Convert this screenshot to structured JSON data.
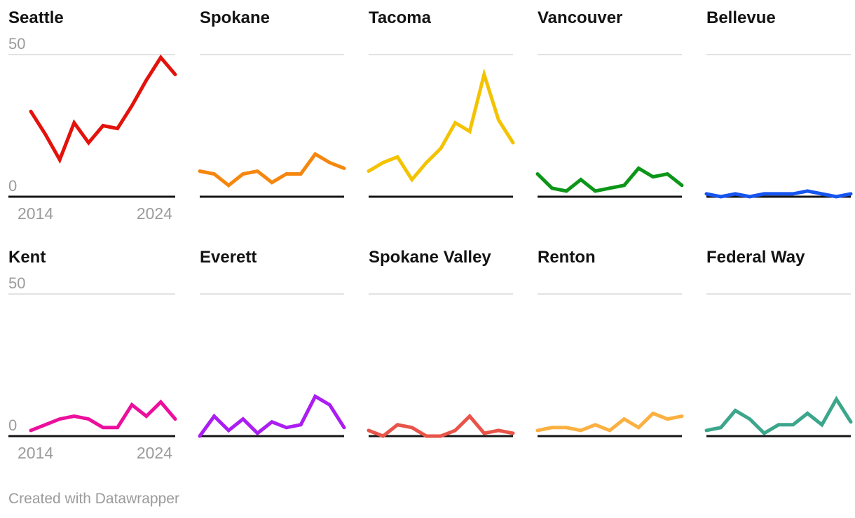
{
  "footer": {
    "text": "Created with Datawrapper"
  },
  "axis": {
    "y_top_label": "50",
    "y_bottom_label": "0",
    "x_start_label": "2014",
    "x_end_label": "2024"
  },
  "chart_data": {
    "type": "line",
    "layout": "small-multiples-5x2",
    "x": [
      2014,
      2015,
      2016,
      2017,
      2018,
      2019,
      2020,
      2021,
      2022,
      2023,
      2024
    ],
    "ylim": [
      0,
      50
    ],
    "y_tick_labels": [
      "0",
      "50"
    ],
    "x_tick_labels": [
      "2014",
      "2024"
    ],
    "grid": "top-gridline-and-baseline-only",
    "legend_position": "none",
    "colors": {
      "gridline": "#d9d9d9",
      "baseline": "#151515",
      "axis_text": "#9b9b9b",
      "title_text": "#131313"
    },
    "series": [
      {
        "name": "Seattle",
        "color": "#e3120b",
        "values": [
          30,
          22,
          13,
          26,
          19,
          25,
          24,
          32,
          41,
          49,
          43
        ]
      },
      {
        "name": "Spokane",
        "color": "#f5870f",
        "values": [
          9,
          8,
          4,
          8,
          9,
          5,
          8,
          8,
          15,
          12,
          10
        ]
      },
      {
        "name": "Tacoma",
        "color": "#f4c300",
        "values": [
          9,
          12,
          14,
          6,
          12,
          17,
          26,
          23,
          43,
          27,
          19
        ]
      },
      {
        "name": "Vancouver",
        "color": "#0c9618",
        "values": [
          8,
          3,
          2,
          6,
          2,
          3,
          4,
          10,
          7,
          8,
          4
        ]
      },
      {
        "name": "Bellevue",
        "color": "#1655f0",
        "values": [
          1,
          0,
          1,
          0,
          1,
          1,
          1,
          2,
          1,
          0,
          1
        ]
      },
      {
        "name": "Kent",
        "color": "#ec0f9d",
        "values": [
          2,
          4,
          6,
          7,
          6,
          3,
          3,
          11,
          7,
          12,
          6
        ]
      },
      {
        "name": "Everett",
        "color": "#ab1df2",
        "values": [
          0,
          7,
          2,
          6,
          1,
          5,
          3,
          4,
          14,
          11,
          3
        ]
      },
      {
        "name": "Spokane Valley",
        "color": "#e85449",
        "values": [
          2,
          0,
          4,
          3,
          0,
          0,
          2,
          7,
          1,
          2,
          1
        ]
      },
      {
        "name": "Renton",
        "color": "#fbb041",
        "values": [
          2,
          3,
          3,
          2,
          4,
          2,
          6,
          3,
          8,
          6,
          7
        ]
      },
      {
        "name": "Federal Way",
        "color": "#3ba68b",
        "values": [
          2,
          3,
          9,
          6,
          1,
          4,
          4,
          8,
          4,
          13,
          5
        ]
      }
    ]
  }
}
